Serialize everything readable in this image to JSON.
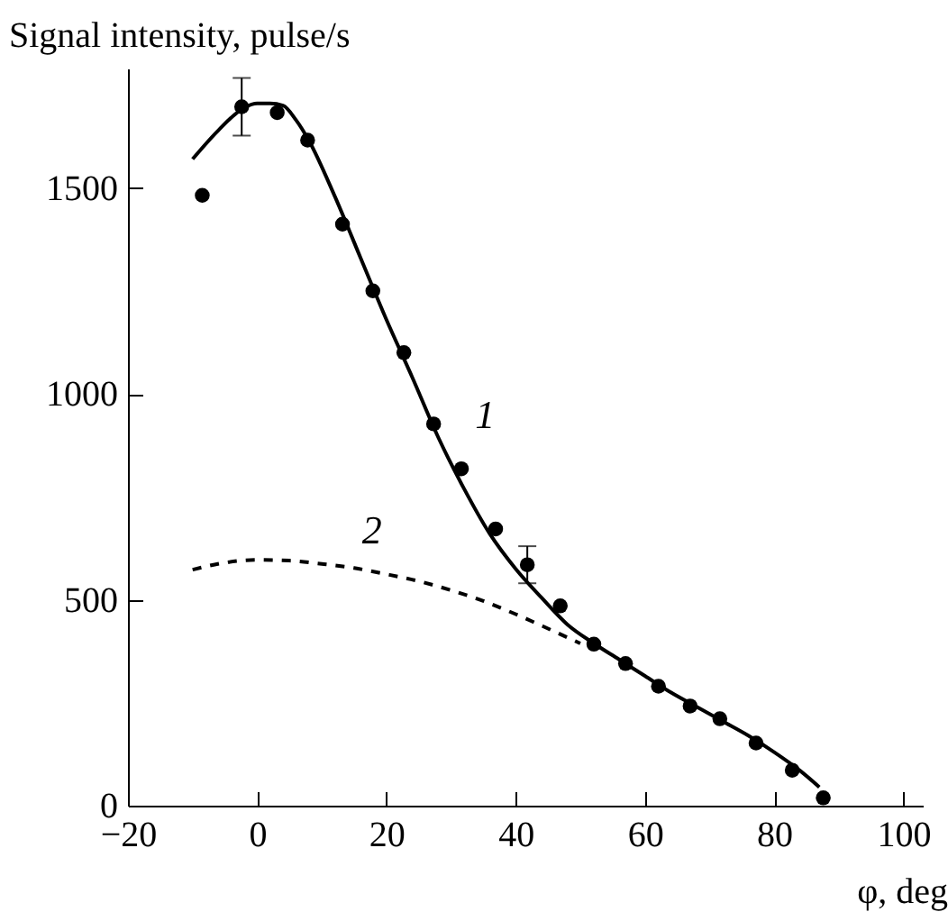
{
  "chart_data": {
    "type": "scatter",
    "xlabel": "φ, deg",
    "ylabel": "Signal intensity, pulse/s",
    "xlim": [
      -20,
      103
    ],
    "ylim": [
      0,
      1790
    ],
    "xticks": [
      -20,
      0,
      20,
      40,
      60,
      80,
      100
    ],
    "yticks": [
      0,
      500,
      1000,
      1500
    ],
    "grid": false,
    "series": [
      {
        "marker": "circle",
        "color": "#000000",
        "x": [
          -8.5,
          -2.4,
          3.1,
          7.8,
          13.2,
          17.9,
          22.7,
          27.3,
          31.6,
          36.9,
          41.8,
          46.9,
          52.1,
          57.0,
          62.1,
          67.0,
          71.6,
          77.2,
          82.8,
          87.6
        ],
        "values": [
          1482,
          1697,
          1683,
          1616,
          1412,
          1250,
          1100,
          927,
          818,
          672,
          585,
          485,
          392,
          345,
          290,
          242,
          211,
          152,
          86,
          19
        ],
        "errors": [
          null,
          70,
          null,
          null,
          null,
          null,
          null,
          null,
          null,
          null,
          45,
          null,
          null,
          null,
          null,
          null,
          null,
          null,
          null,
          null
        ]
      },
      {
        "type": "line",
        "name": "1",
        "line_style": "solid",
        "color": "#000000",
        "x": [
          -10,
          -6,
          -2,
          0,
          2,
          4,
          6,
          8,
          12,
          16,
          20,
          24,
          28,
          32,
          36,
          40,
          44,
          48,
          52,
          56,
          60,
          64,
          68,
          72,
          76,
          80,
          84,
          87
        ],
        "values": [
          1570,
          1640,
          1695,
          1705,
          1705,
          1700,
          1665,
          1615,
          1480,
          1330,
          1180,
          1040,
          895,
          770,
          660,
          575,
          505,
          440,
          395,
          355,
          315,
          275,
          240,
          205,
          170,
          130,
          85,
          45
        ]
      },
      {
        "type": "line",
        "name": "2",
        "line_style": "dashed",
        "color": "#000000",
        "x": [
          -10,
          -5,
          0,
          5,
          10,
          15,
          20,
          25,
          30,
          35,
          40,
          45,
          50
        ],
        "values": [
          573,
          590,
          597,
          595,
          587,
          577,
          562,
          545,
          523,
          497,
          465,
          430,
          394
        ]
      }
    ]
  }
}
